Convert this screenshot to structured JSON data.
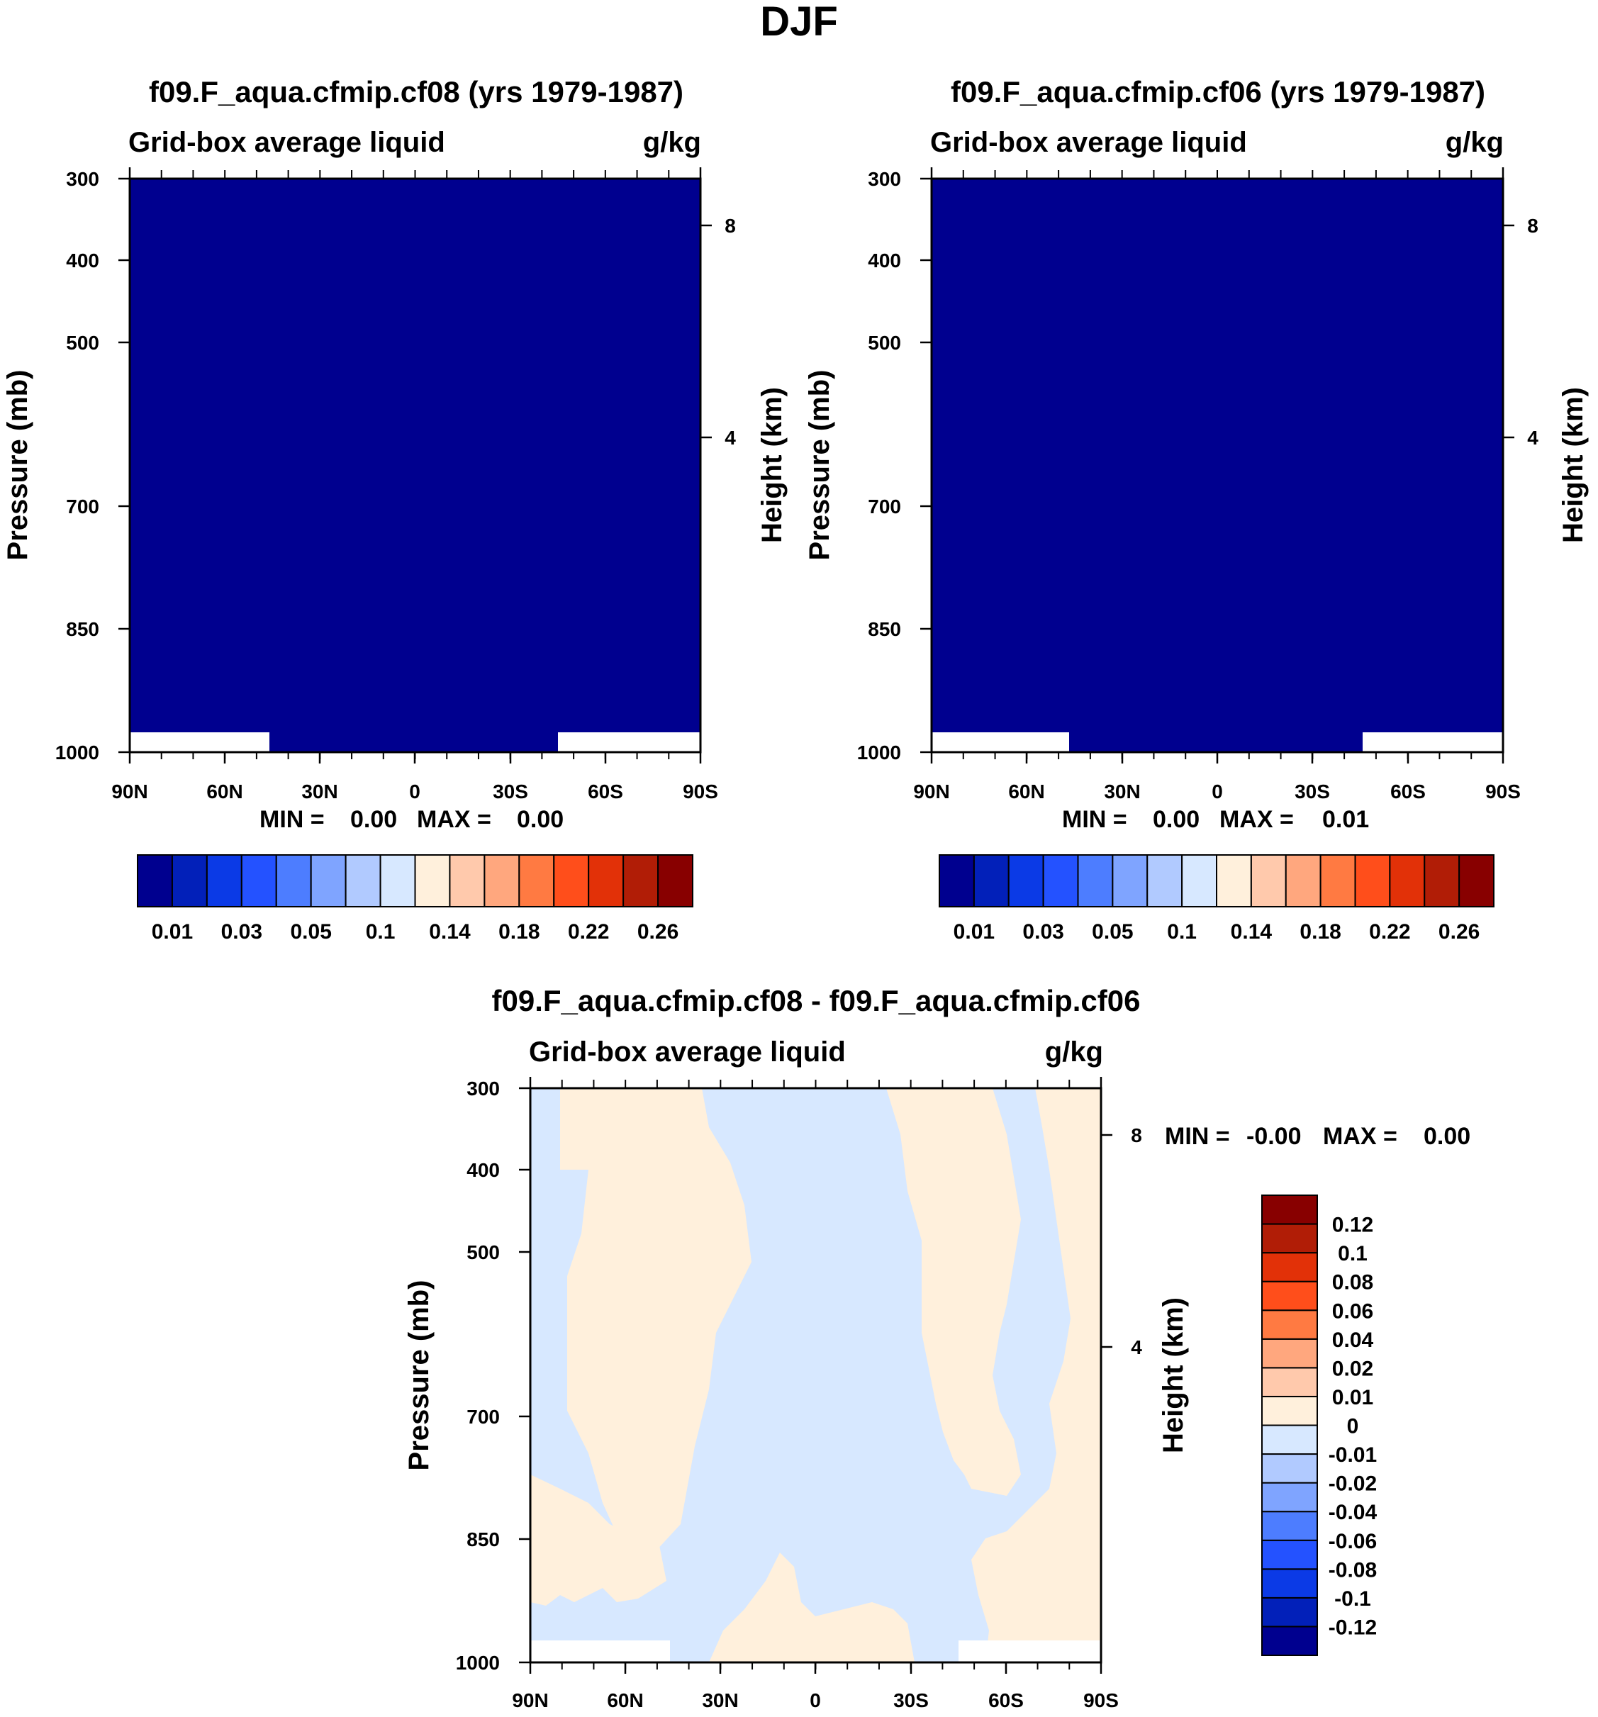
{
  "figure": {
    "title": "DJF"
  },
  "chart_data": [
    {
      "type": "heatmap",
      "title": "f09.F_aqua.cfmip.cf08 (yrs 1979-1987)",
      "variable": "Grid-box average liquid",
      "units": "g/kg",
      "ylabel": "Pressure (mb)",
      "y2label": "Height (km)",
      "x_ticks": [
        "90N",
        "60N",
        "30N",
        "0",
        "30S",
        "60S",
        "90S"
      ],
      "y_ticks": [
        "300",
        "400",
        "500",
        "700",
        "850",
        "1000"
      ],
      "y_tick_values": [
        300,
        400,
        500,
        700,
        850,
        1000
      ],
      "y2_ticks": [
        "8",
        "4"
      ],
      "y2_tick_values": [
        8,
        4
      ],
      "xlim": [
        90,
        -90
      ],
      "ylim": [
        1000,
        300
      ],
      "field": "uniform, lowest contour interval everywhere; missing below ~975 mb poleward of ~45",
      "missing_near_surface": [
        {
          "from_lat": 90,
          "to_lat": 45
        },
        {
          "from_lat": -45,
          "to_lat": -90
        }
      ],
      "min_label": "MIN =",
      "min_value": "0.00",
      "max_label": "MAX =",
      "max_value": "0.00",
      "colorbar": {
        "colors": [
          "#00008f",
          "#0220b9",
          "#0b3ae6",
          "#2452ff",
          "#4d7dff",
          "#7fa4ff",
          "#b1caff",
          "#d7e8ff",
          "#fff0dc",
          "#ffc9ac",
          "#ffa77e",
          "#ff7a42",
          "#ff4e1b",
          "#e23108",
          "#b11d06",
          "#880000"
        ],
        "labels": [
          "0.01",
          "0.03",
          "0.05",
          "0.1",
          "0.14",
          "0.18",
          "0.22",
          "0.26"
        ]
      }
    },
    {
      "type": "heatmap",
      "title": "f09.F_aqua.cfmip.cf06 (yrs 1979-1987)",
      "variable": "Grid-box average liquid",
      "units": "g/kg",
      "ylabel": "Pressure (mb)",
      "y2label": "Height (km)",
      "x_ticks": [
        "90N",
        "60N",
        "30N",
        "0",
        "30S",
        "60S",
        "90S"
      ],
      "y_ticks": [
        "300",
        "400",
        "500",
        "700",
        "850",
        "1000"
      ],
      "y_tick_values": [
        300,
        400,
        500,
        700,
        850,
        1000
      ],
      "y2_ticks": [
        "8",
        "4"
      ],
      "y2_tick_values": [
        8,
        4
      ],
      "xlim": [
        90,
        -90
      ],
      "ylim": [
        1000,
        300
      ],
      "field": "uniform, lowest contour interval everywhere; missing below ~975 mb poleward of ~45",
      "missing_near_surface": [
        {
          "from_lat": 90,
          "to_lat": 47
        },
        {
          "from_lat": -45,
          "to_lat": -90
        }
      ],
      "min_label": "MIN =",
      "min_value": "0.00",
      "max_label": "MAX =",
      "max_value": "0.01",
      "colorbar": {
        "colors": [
          "#00008f",
          "#0220b9",
          "#0b3ae6",
          "#2452ff",
          "#4d7dff",
          "#7fa4ff",
          "#b1caff",
          "#d7e8ff",
          "#fff0dc",
          "#ffc9ac",
          "#ffa77e",
          "#ff7a42",
          "#ff4e1b",
          "#e23108",
          "#b11d06",
          "#880000"
        ],
        "labels": [
          "0.01",
          "0.03",
          "0.05",
          "0.1",
          "0.14",
          "0.18",
          "0.22",
          "0.26"
        ]
      }
    },
    {
      "type": "heatmap",
      "title": "f09.F_aqua.cfmip.cf08 - f09.F_aqua.cfmip.cf06",
      "variable": "Grid-box average liquid",
      "units": "g/kg",
      "ylabel": "Pressure (mb)",
      "y2label": "Height (km)",
      "x_ticks": [
        "90N",
        "60N",
        "30N",
        "0",
        "30S",
        "60S",
        "90S"
      ],
      "y_ticks": [
        "300",
        "400",
        "500",
        "700",
        "850",
        "1000"
      ],
      "y_tick_values": [
        300,
        400,
        500,
        700,
        850,
        1000
      ],
      "y2_ticks": [
        "8",
        "4"
      ],
      "y2_tick_values": [
        8,
        4
      ],
      "xlim": [
        90,
        -90
      ],
      "ylim": [
        1000,
        300
      ],
      "field": "near-zero differences: light blue (0 to -0.01) in tropics/mid-troposphere, light peach (0 to 0.01) in subtropics and high latitudes",
      "missing_near_surface": [
        {
          "from_lat": 90,
          "to_lat": 46
        },
        {
          "from_lat": -45,
          "to_lat": -90
        }
      ],
      "min_label": "MIN =",
      "min_value": "-0.00",
      "max_label": "MAX =",
      "max_value": "0.00",
      "colorbar": {
        "colors": [
          "#00008f",
          "#0220b9",
          "#0b3ae6",
          "#2452ff",
          "#4d7dff",
          "#7fa4ff",
          "#b1caff",
          "#d7e8ff",
          "#fff0dc",
          "#ffc9ac",
          "#ffa77e",
          "#ff7a42",
          "#ff4e1b",
          "#e23108",
          "#b11d06",
          "#880000"
        ],
        "labels": [
          "-0.12",
          "-0.1",
          "-0.08",
          "-0.06",
          "-0.04",
          "-0.02",
          "-0.01",
          "0",
          "0.01",
          "0.02",
          "0.04",
          "0.06",
          "0.08",
          "0.1",
          "0.12"
        ]
      }
    }
  ]
}
